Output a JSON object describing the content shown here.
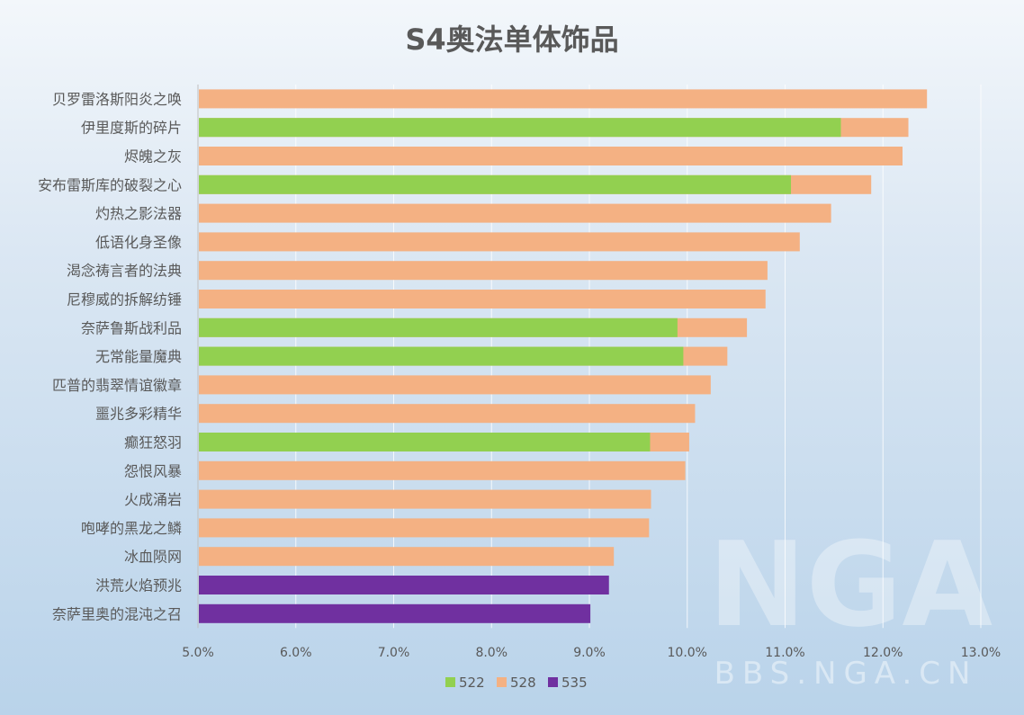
{
  "chart_data": {
    "type": "bar",
    "orientation": "horizontal",
    "title": "S4奥法单体饰品",
    "xlabel": "",
    "ylabel": "",
    "xlim": [
      5.0,
      13.0
    ],
    "x_ticks": [
      "5.0%",
      "6.0%",
      "7.0%",
      "8.0%",
      "9.0%",
      "10.0%",
      "11.0%",
      "12.0%",
      "13.0%"
    ],
    "grid": "vertical",
    "legend_position": "bottom",
    "categories": [
      "贝罗雷洛斯阳炎之唤",
      "伊里度斯的碎片",
      "烬魄之灰",
      "安布雷斯库的破裂之心",
      "灼热之影法器",
      "低语化身圣像",
      "渴念祷言者的法典",
      "尼穆威的拆解纺锤",
      "奈萨鲁斯战利品",
      "无常能量魔典",
      "匹普的翡翠情谊徽章",
      "噩兆多彩精华",
      "癫狂怒羽",
      "怨恨风暴",
      "火成涌岩",
      "咆哮的黑龙之鳞",
      "冰血陨网",
      "洪荒火焰预兆",
      "奈萨里奥的混沌之召"
    ],
    "series": [
      {
        "name": "522",
        "color": "#92d050",
        "values": [
          null,
          11.57,
          null,
          11.06,
          null,
          null,
          null,
          null,
          9.9,
          9.96,
          null,
          null,
          9.62,
          null,
          null,
          null,
          null,
          null,
          null
        ]
      },
      {
        "name": "528",
        "color": "#f4b183",
        "values": [
          12.45,
          12.26,
          12.2,
          11.88,
          11.47,
          11.15,
          10.82,
          10.8,
          10.61,
          10.41,
          10.24,
          10.08,
          10.02,
          9.98,
          9.63,
          9.61,
          9.25,
          null,
          null
        ]
      },
      {
        "name": "535",
        "color": "#7030a0",
        "values": [
          null,
          null,
          null,
          null,
          null,
          null,
          null,
          null,
          null,
          null,
          null,
          null,
          null,
          null,
          null,
          null,
          null,
          9.2,
          9.01
        ]
      }
    ]
  },
  "watermark": {
    "logo": "NGA",
    "site": "BBS.NGA.CN"
  }
}
